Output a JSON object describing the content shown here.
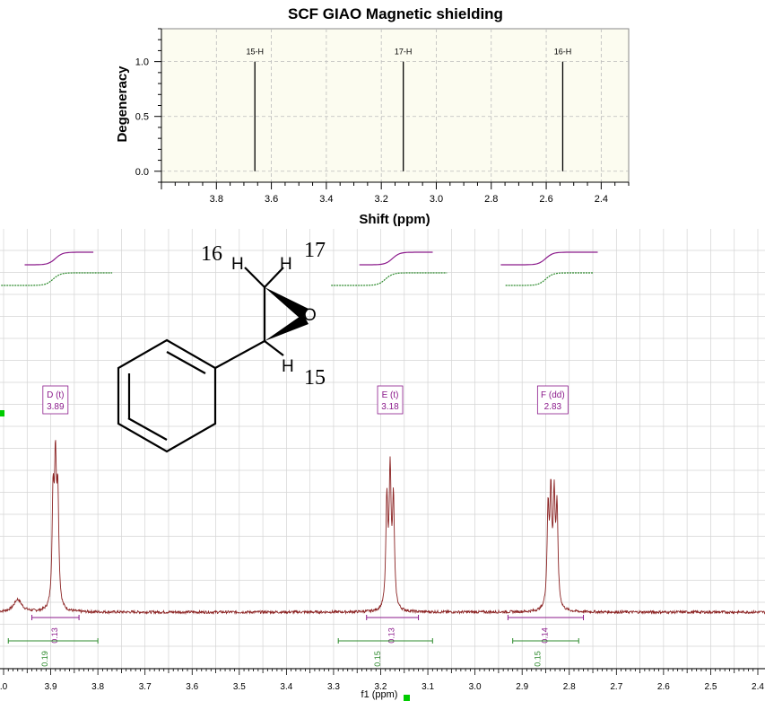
{
  "top_chart": {
    "title": "SCF GIAO Magnetic shielding",
    "xlabel": "Shift (ppm)",
    "ylabel": "Degeneracy"
  },
  "bottom_chart": {
    "xlabel": "f1 (ppm)"
  },
  "molecule": {
    "labels": [
      {
        "text": "16",
        "role": "number"
      },
      {
        "text": "H",
        "role": "atom"
      },
      {
        "text": "H",
        "role": "atom"
      },
      {
        "text": "17",
        "role": "number"
      },
      {
        "text": "O",
        "role": "atom"
      },
      {
        "text": "H",
        "role": "atom"
      },
      {
        "text": "15",
        "role": "number"
      }
    ]
  },
  "colors": {
    "plot_bg": "#fcfcf0",
    "stick": "#000000",
    "spectrum": "#8b2323",
    "integral_purple": "#8b1a8b",
    "integral_green": "#2e8b2e",
    "marker_green": "#00cc00",
    "grid": "#c8c8c8"
  },
  "chart_data": [
    {
      "type": "bar",
      "title": "SCF GIAO Magnetic shielding",
      "xlabel": "Shift (ppm)",
      "ylabel": "Degeneracy",
      "xlim": [
        4.0,
        2.3
      ],
      "x_reversed": true,
      "ylim": [
        -0.1,
        1.3
      ],
      "xticks": [
        "3.8",
        "3.6",
        "3.4",
        "3.2",
        "3.0",
        "2.8",
        "2.6",
        "2.4"
      ],
      "yticks": [
        "0.0",
        "0.5",
        "1.0"
      ],
      "grid": true,
      "sticks": [
        {
          "label": "15-H",
          "x": 3.66,
          "y": 1.0
        },
        {
          "label": "17-H",
          "x": 3.12,
          "y": 1.0
        },
        {
          "label": "16-H",
          "x": 2.54,
          "y": 1.0
        }
      ]
    },
    {
      "type": "line",
      "xlabel": "f1 (ppm)",
      "xlim": [
        4.0,
        2.4
      ],
      "x_reversed": true,
      "xticks": [
        ".0",
        "3.9",
        "3.8",
        "3.7",
        "3.6",
        "3.5",
        "3.4",
        "3.3",
        "3.2",
        "3.1",
        "3.0",
        "2.9",
        "2.8",
        "2.7",
        "2.6",
        "2.5",
        "2.4"
      ],
      "grid": true,
      "multiplets": [
        {
          "label": "D (t)",
          "shift": "3.89",
          "x": 3.89,
          "peaks": [
            3.895,
            3.89,
            3.885
          ]
        },
        {
          "label": "E (t)",
          "shift": "3.18",
          "x": 3.18,
          "peaks": [
            3.187,
            3.18,
            3.173
          ]
        },
        {
          "label": "F (dd)",
          "shift": "2.83",
          "x": 2.835,
          "peaks": [
            2.845,
            2.839,
            2.832,
            2.826
          ]
        }
      ],
      "integrals": [
        {
          "color": "purple",
          "value": "0.13",
          "from": 3.94,
          "to": 3.84
        },
        {
          "color": "green",
          "value": "0.19",
          "from": 3.99,
          "to": 3.8
        },
        {
          "color": "purple",
          "value": "0.13",
          "from": 3.23,
          "to": 3.12
        },
        {
          "color": "green",
          "value": "0.15",
          "from": 3.29,
          "to": 3.09
        },
        {
          "color": "purple",
          "value": "0.14",
          "from": 2.93,
          "to": 2.77
        },
        {
          "color": "green",
          "value": "0.15",
          "from": 2.92,
          "to": 2.78
        }
      ]
    }
  ]
}
